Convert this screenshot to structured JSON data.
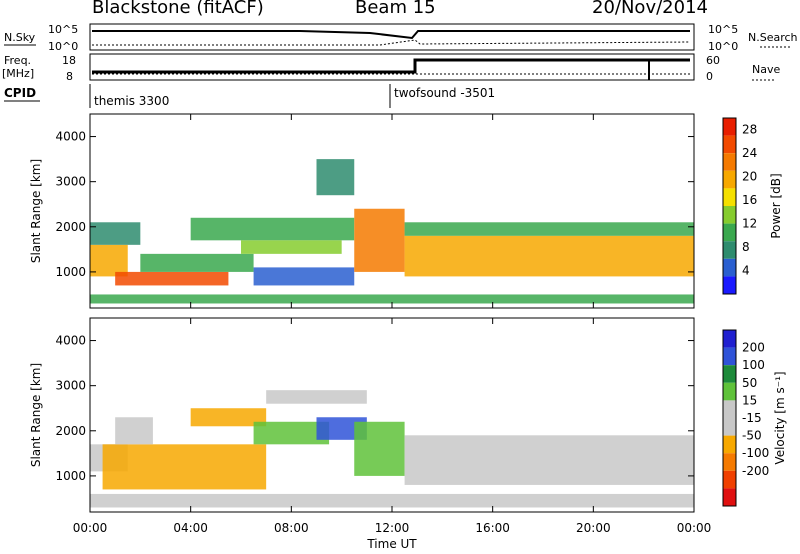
{
  "header": {
    "station": "Blackstone (fitACF)",
    "beam": "Beam 15",
    "date": "20/Nov/2014"
  },
  "colors": {
    "power_scale": [
      "#1a1aff",
      "#2a5fd0",
      "#2e8c6e",
      "#3aa84e",
      "#86cc2e",
      "#f5e000",
      "#f7a800",
      "#f57a00",
      "#f24a00",
      "#e81e00"
    ],
    "velocity_scale": [
      "#2020d0",
      "#2f53d8",
      "#1d8a3a",
      "#5fc23a",
      "#c8c8c8",
      "#c8c8c8",
      "#f7a800",
      "#f57a00",
      "#f04000",
      "#e01010"
    ],
    "ground_scatter": "#c0c0c0"
  },
  "strip": {
    "nsky_label": "N.Sky",
    "nsky_top": "10^5",
    "nsky_bottom": "10^0",
    "nsearch_label": "N.Search",
    "nsearch_top": "10^5",
    "nsearch_bottom": "10^0",
    "freq_label": "Freq.",
    "freq_unit": "[MHz]",
    "freq_top": "18",
    "freq_bottom": "8",
    "nave_label": "Nave",
    "nave_top": "60",
    "nave_bottom": "0",
    "cpid_label": "CPID",
    "cpid_1": "themis 3300",
    "cpid_2": "twofsound -3501"
  },
  "chart_data": [
    {
      "type": "heatmap",
      "title": "",
      "xlabel": "",
      "ylabel": "Slant Range [km]",
      "x_ticks": [
        "00:00",
        "04:00",
        "08:00",
        "12:00",
        "16:00",
        "20:00",
        "00:00"
      ],
      "y_ticks": [
        "1000",
        "2000",
        "3000",
        "4000"
      ],
      "ylim": [
        200,
        4500
      ],
      "xlim_hours": [
        0,
        24
      ],
      "colorbar": {
        "label": "Power [dB]",
        "ticks": [
          "4",
          "8",
          "12",
          "16",
          "20",
          "24",
          "28"
        ],
        "range": [
          0,
          30
        ]
      },
      "bands": [
        {
          "t0": 0.0,
          "t1": 1.5,
          "r0": 900,
          "r1": 1600,
          "value": 18
        },
        {
          "t0": 0.0,
          "t1": 2.0,
          "r0": 1600,
          "r1": 2100,
          "value": 6
        },
        {
          "t0": 1.0,
          "t1": 5.5,
          "r0": 700,
          "r1": 1000,
          "value": 24
        },
        {
          "t0": 2.0,
          "t1": 6.5,
          "r0": 1000,
          "r1": 1400,
          "value": 10
        },
        {
          "t0": 4.0,
          "t1": 10.5,
          "r0": 1700,
          "r1": 2200,
          "value": 9
        },
        {
          "t0": 6.0,
          "t1": 10.0,
          "r0": 1400,
          "r1": 1700,
          "value": 13
        },
        {
          "t0": 6.5,
          "t1": 10.5,
          "r0": 700,
          "r1": 1100,
          "value": 5
        },
        {
          "t0": 9.0,
          "t1": 10.5,
          "r0": 2700,
          "r1": 3500,
          "value": 7
        },
        {
          "t0": 10.5,
          "t1": 12.5,
          "r0": 1000,
          "r1": 2400,
          "value": 22
        },
        {
          "t0": 12.5,
          "t1": 24.0,
          "r0": 900,
          "r1": 1800,
          "value": 19
        },
        {
          "t0": 12.5,
          "t1": 24.0,
          "r0": 1800,
          "r1": 2100,
          "value": 10
        },
        {
          "t0": 0.0,
          "t1": 24.0,
          "r0": 300,
          "r1": 500,
          "value": 11
        }
      ]
    },
    {
      "type": "heatmap",
      "title": "",
      "xlabel": "Time UT",
      "ylabel": "Slant Range [km]",
      "x_ticks": [
        "00:00",
        "04:00",
        "08:00",
        "12:00",
        "16:00",
        "20:00",
        "00:00"
      ],
      "y_ticks": [
        "1000",
        "2000",
        "3000",
        "4000"
      ],
      "ylim": [
        200,
        4500
      ],
      "xlim_hours": [
        0,
        24
      ],
      "colorbar": {
        "label": "Velocity [m s⁻¹]",
        "ticks": [
          "200",
          "100",
          "50",
          "15",
          "-15",
          "-50",
          "-100",
          "-200"
        ],
        "range": [
          -250,
          250
        ]
      },
      "bands": [
        {
          "t0": 0.0,
          "t1": 1.5,
          "r0": 1100,
          "r1": 1700,
          "value": 0
        },
        {
          "t0": 0.5,
          "t1": 7.0,
          "r0": 700,
          "r1": 1700,
          "value": -70
        },
        {
          "t0": 1.0,
          "t1": 2.5,
          "r0": 1700,
          "r1": 2300,
          "value": -40
        },
        {
          "t0": 4.0,
          "t1": 7.0,
          "r0": 2100,
          "r1": 2500,
          "value": -90
        },
        {
          "t0": 6.5,
          "t1": 9.5,
          "r0": 1700,
          "r1": 2200,
          "value": 60
        },
        {
          "t0": 9.0,
          "t1": 11.0,
          "r0": 1800,
          "r1": 2300,
          "value": 150
        },
        {
          "t0": 7.0,
          "t1": 11.0,
          "r0": 2600,
          "r1": 2900,
          "value": 0
        },
        {
          "t0": 10.5,
          "t1": 12.5,
          "r0": 1000,
          "r1": 2200,
          "value": 60
        },
        {
          "t0": 12.5,
          "t1": 24.0,
          "r0": 800,
          "r1": 1900,
          "value": 0
        },
        {
          "t0": 0.0,
          "t1": 24.0,
          "r0": 300,
          "r1": 600,
          "value": 40
        }
      ]
    }
  ]
}
